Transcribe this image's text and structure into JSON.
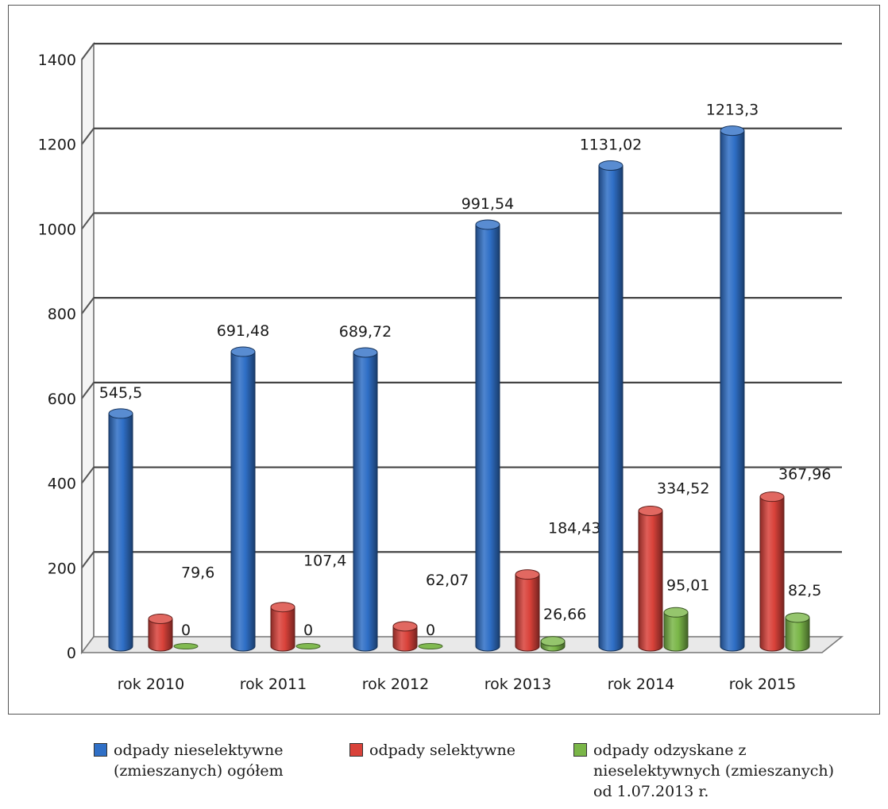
{
  "chart_data": {
    "type": "bar",
    "categories": [
      "rok 2010",
      "rok 2011",
      "rok 2012",
      "rok 2013",
      "rok 2014",
      "rok 2015"
    ],
    "series": [
      {
        "name": "odpady nieselektywne\n(zmieszanych) ogółem",
        "values": [
          545.5,
          691.48,
          689.72,
          991.54,
          1131.02,
          1213.3
        ],
        "labels": [
          "545,5",
          "691,48",
          "689,72",
          "991,54",
          "1131,02",
          "1213,3"
        ],
        "color": "#2f6fc6"
      },
      {
        "name": "odpady selektywne",
        "values": [
          79.6,
          107.4,
          62.07,
          184.43,
          334.52,
          367.96
        ],
        "labels": [
          "79,6",
          "107,4",
          "62,07",
          "184,43",
          "334,52",
          "367,96"
        ],
        "color": "#d9423a"
      },
      {
        "name": "odpady odzyskane z\nnieselektywnych (zmieszanych)\nod 1.07.2013 r.",
        "values": [
          0,
          0,
          0,
          26.66,
          95.01,
          82.5
        ],
        "labels": [
          "0",
          "0",
          "0",
          "26,66",
          "95,01",
          "82,5"
        ],
        "color": "#7ab648"
      }
    ],
    "yticks": [
      "0",
      "200",
      "400",
      "600",
      "800",
      "1000",
      "1200",
      "1400"
    ],
    "ylim": [
      0,
      1400
    ],
    "grid": true,
    "legend_position": "bottom",
    "title": "",
    "xlabel": "",
    "ylabel": ""
  }
}
